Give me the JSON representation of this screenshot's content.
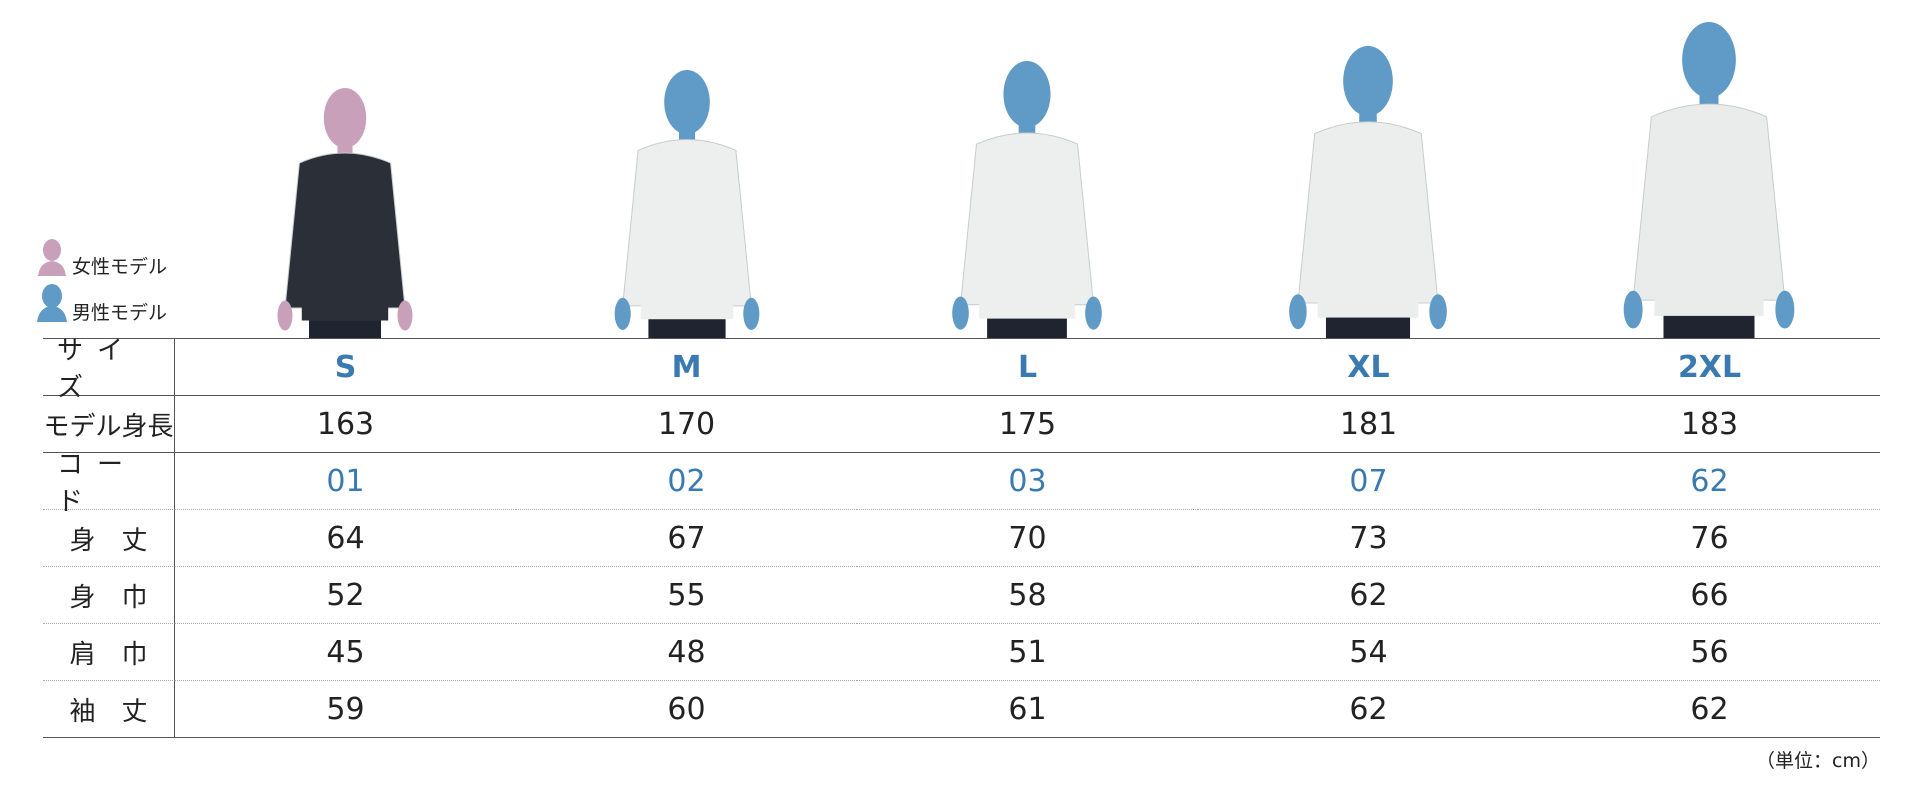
{
  "legend": [
    "女性モデル",
    "男性モデル"
  ],
  "table": {
    "header": "サイズ",
    "sizes": [
      "S",
      "M",
      "L",
      "XL",
      "2XL"
    ],
    "rows": [
      {
        "label": "モデル身長",
        "values": [
          163,
          170,
          175,
          181,
          183
        ]
      },
      {
        "label": "コード",
        "values": [
          "01",
          "02",
          "03",
          "07",
          "62"
        ]
      },
      {
        "label": "身　丈",
        "values": [
          64,
          67,
          70,
          73,
          76
        ]
      },
      {
        "label": "身　巾",
        "values": [
          52,
          55,
          58,
          62,
          66
        ]
      },
      {
        "label": "肩　巾",
        "values": [
          45,
          48,
          51,
          54,
          56
        ]
      },
      {
        "label": "袖　丈",
        "values": [
          59,
          60,
          61,
          62,
          62
        ]
      }
    ]
  },
  "unit": "（単位：cm）"
}
